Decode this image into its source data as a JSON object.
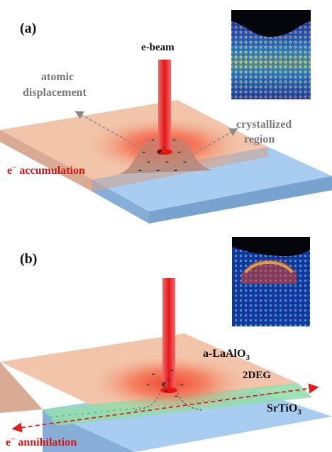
{
  "panel_a": {
    "label": "(a)",
    "beam_label": "e-beam",
    "displacement_label_line1": "atomic",
    "displacement_label_line2": "displacement",
    "crystallized_label_line1": "crystallized",
    "crystallized_label_line2": "region",
    "accumulation_label": "accumulation",
    "electron_symbol": "e",
    "charges": [
      "-",
      "-",
      "-",
      "-",
      "-",
      "-",
      "-",
      "-",
      "-",
      "-"
    ]
  },
  "panel_b": {
    "label": "(b)",
    "layer_top_label": "a-LaAlO",
    "layer_top_sub": "3",
    "twodeg_label": "2DEG",
    "substrate_label": "SrTiO",
    "substrate_sub": "3",
    "annihilation_label": "annihilation",
    "electron_symbol": "e",
    "charges": [
      "-",
      "-",
      "-",
      "-",
      "-",
      "-"
    ]
  },
  "colors": {
    "laalo3": "#f2c2a6",
    "srtio3": "#9cc4ea",
    "twodeg": "#8fdcaa",
    "beam": "#ee2a2a",
    "label_red": "#d01818",
    "label_gray": "#7a7a7a"
  }
}
